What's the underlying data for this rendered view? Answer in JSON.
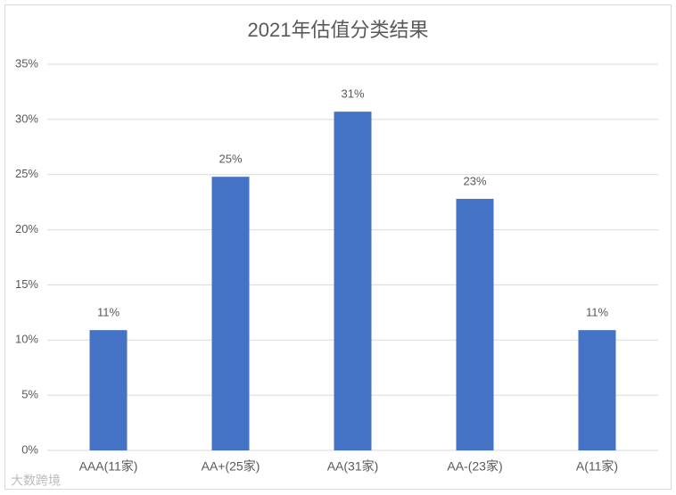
{
  "chart_data": {
    "type": "bar",
    "title": "2021年估值分类结果",
    "categories": [
      "AAA(11家)",
      "AA+(25家)",
      "AA(31家)",
      "AA-(23家)",
      "A(11家)"
    ],
    "values": [
      10.9,
      24.8,
      30.7,
      22.8,
      10.9
    ],
    "value_labels": [
      "11%",
      "25%",
      "31%",
      "23%",
      "11%"
    ],
    "color": "#4472c4",
    "ylim": [
      0,
      35
    ],
    "yticks": [
      {
        "value": 0,
        "label": "0%"
      },
      {
        "value": 5,
        "label": "5%"
      },
      {
        "value": 10,
        "label": "10%"
      },
      {
        "value": 15,
        "label": "15%"
      },
      {
        "value": 20,
        "label": "20%"
      },
      {
        "value": 25,
        "label": "25%"
      },
      {
        "value": 30,
        "label": "30%"
      },
      {
        "value": 35,
        "label": "35%"
      }
    ],
    "grid": true,
    "watermark": "大数跨境"
  }
}
